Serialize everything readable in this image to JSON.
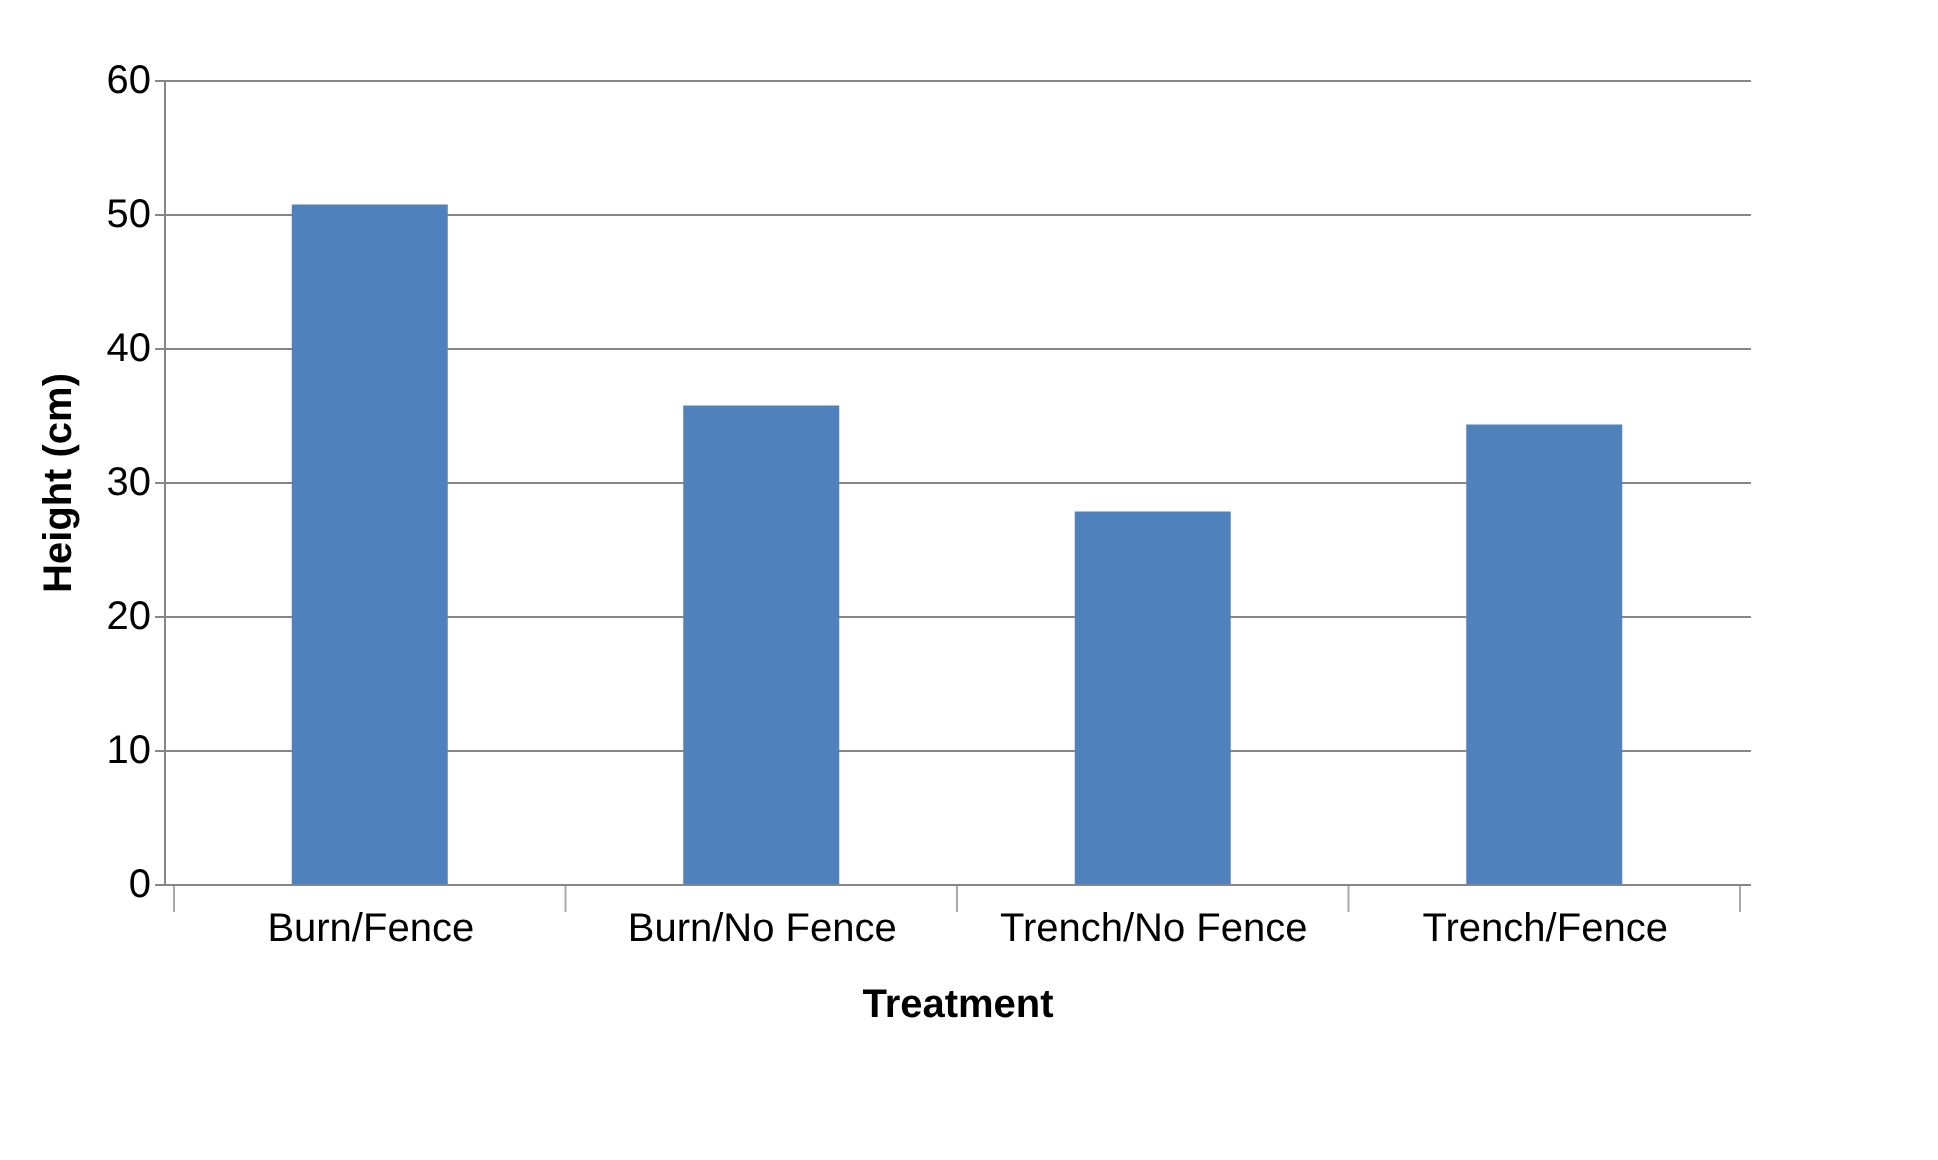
{
  "chart_data": {
    "type": "bar",
    "xlabel": "Treatment",
    "ylabel": "Height (cm)",
    "categories": [
      "Burn/Fence",
      "Burn/No Fence",
      "Trench/No Fence",
      "Trench/Fence"
    ],
    "values": [
      50.7,
      35.7,
      27.8,
      34.3
    ],
    "color": "#4f81bd",
    "ylim": [
      0,
      60
    ],
    "yticks": [
      0,
      10,
      20,
      30,
      40,
      50,
      60
    ],
    "grid": "y"
  }
}
